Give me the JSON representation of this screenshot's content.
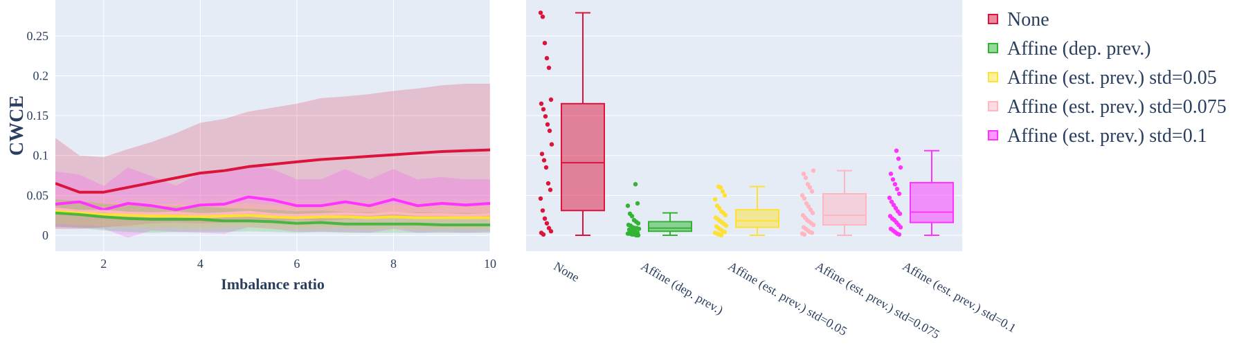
{
  "chart_data": [
    {
      "type": "line",
      "xlabel": "Imbalance ratio",
      "ylabel": "CWCE",
      "xlim": [
        1,
        10
      ],
      "ylim": [
        -0.02,
        0.295
      ],
      "xticks": [
        "2",
        "4",
        "6",
        "8",
        "10"
      ],
      "yticks": [
        "0",
        "0.05",
        "0.1",
        "0.15",
        "0.2",
        "0.25"
      ],
      "grid": true,
      "x": [
        1,
        1.5,
        2,
        2.5,
        3,
        3.5,
        4,
        4.5,
        5,
        5.5,
        6,
        6.5,
        7,
        7.5,
        8,
        8.5,
        9,
        9.5,
        10
      ],
      "series": [
        {
          "color": "#dc143c",
          "values": [
            0.065,
            0.054,
            0.054,
            0.06,
            0.066,
            0.072,
            0.078,
            0.081,
            0.086,
            0.089,
            0.092,
            0.095,
            0.097,
            0.099,
            0.101,
            0.103,
            0.105,
            0.106,
            0.107
          ],
          "upper": [
            0.122,
            0.1,
            0.098,
            0.108,
            0.117,
            0.128,
            0.141,
            0.146,
            0.155,
            0.16,
            0.165,
            0.172,
            0.174,
            0.177,
            0.181,
            0.184,
            0.188,
            0.19,
            0.19
          ],
          "lower": [
            0.008,
            0.008,
            0.01,
            0.012,
            0.015,
            0.016,
            0.015,
            0.016,
            0.017,
            0.018,
            0.019,
            0.018,
            0.02,
            0.021,
            0.021,
            0.022,
            0.022,
            0.022,
            0.022
          ]
        },
        {
          "color": "#ff33ff",
          "values": [
            0.039,
            0.042,
            0.032,
            0.04,
            0.037,
            0.032,
            0.038,
            0.039,
            0.048,
            0.044,
            0.037,
            0.037,
            0.042,
            0.037,
            0.045,
            0.037,
            0.04,
            0.038,
            0.04
          ],
          "upper": [
            0.08,
            0.076,
            0.062,
            0.085,
            0.074,
            0.062,
            0.078,
            0.078,
            0.088,
            0.083,
            0.07,
            0.07,
            0.083,
            0.07,
            0.083,
            0.07,
            0.073,
            0.07,
            0.07
          ],
          "lower": [
            0.01,
            0.01,
            0.008,
            -0.003,
            0.006,
            0.004,
            0.003,
            0.002,
            0.01,
            0.008,
            0.004,
            0.004,
            0.004,
            0.003,
            0.008,
            0.003,
            0.004,
            0.003,
            0.004
          ]
        },
        {
          "color": "#ffb6c1",
          "values": [
            0.033,
            0.03,
            0.03,
            0.028,
            0.027,
            0.028,
            0.026,
            0.027,
            0.029,
            0.026,
            0.025,
            0.026,
            0.027,
            0.026,
            0.028,
            0.026,
            0.026,
            0.025,
            0.026
          ],
          "upper": [
            0.052,
            0.05,
            0.05,
            0.048,
            0.047,
            0.047,
            0.046,
            0.047,
            0.049,
            0.046,
            0.045,
            0.046,
            0.047,
            0.046,
            0.048,
            0.046,
            0.046,
            0.045,
            0.046
          ],
          "lower": [
            0.014,
            0.012,
            0.012,
            0.01,
            0.009,
            0.01,
            0.009,
            0.01,
            0.011,
            0.009,
            0.008,
            0.009,
            0.01,
            0.009,
            0.01,
            0.009,
            0.009,
            0.008,
            0.009
          ]
        },
        {
          "color": "#ffe135",
          "values": [
            0.03,
            0.028,
            0.026,
            0.025,
            0.024,
            0.024,
            0.023,
            0.024,
            0.025,
            0.023,
            0.022,
            0.023,
            0.023,
            0.022,
            0.023,
            0.022,
            0.022,
            0.022,
            0.022
          ],
          "upper": [
            0.045,
            0.043,
            0.041,
            0.04,
            0.039,
            0.039,
            0.038,
            0.039,
            0.04,
            0.038,
            0.037,
            0.038,
            0.038,
            0.037,
            0.038,
            0.037,
            0.037,
            0.037,
            0.037
          ],
          "lower": [
            0.015,
            0.013,
            0.011,
            0.01,
            0.009,
            0.009,
            0.008,
            0.009,
            0.01,
            0.008,
            0.007,
            0.008,
            0.008,
            0.007,
            0.008,
            0.007,
            0.007,
            0.007,
            0.007
          ]
        },
        {
          "color": "#32b432",
          "values": [
            0.028,
            0.026,
            0.023,
            0.021,
            0.02,
            0.02,
            0.02,
            0.018,
            0.018,
            0.017,
            0.015,
            0.016,
            0.014,
            0.014,
            0.014,
            0.014,
            0.013,
            0.013,
            0.013
          ],
          "upper": [
            0.045,
            0.043,
            0.04,
            0.038,
            0.037,
            0.036,
            0.036,
            0.034,
            0.033,
            0.032,
            0.03,
            0.031,
            0.029,
            0.029,
            0.029,
            0.029,
            0.028,
            0.028,
            0.028
          ],
          "lower": [
            0.011,
            0.009,
            0.006,
            0.004,
            0.003,
            0.004,
            0.004,
            0.004,
            0.005,
            0.004,
            0.003,
            0.004,
            0.003,
            0.003,
            0.003,
            0.003,
            0.003,
            0.003,
            0.003
          ]
        }
      ]
    },
    {
      "type": "box",
      "ylim": [
        -0.02,
        0.295
      ],
      "grid": true,
      "categories": [
        "None",
        "Affine (dep. prev.)",
        "Affine (est. prev.) std=0.05",
        "Affine (est. prev.) std=0.075",
        "Affine (est. prev.) std=0.1"
      ],
      "boxes": [
        {
          "name": "None",
          "color": "#dc143c",
          "fill": "rgba(220,20,60,0.5)",
          "min": 0.0,
          "q1": 0.031,
          "median": 0.091,
          "q3": 0.165,
          "max": 0.279,
          "points": [
            0.279,
            0.274,
            0.241,
            0.222,
            0.21,
            0.17,
            0.165,
            0.158,
            0.149,
            0.139,
            0.131,
            0.114,
            0.102,
            0.094,
            0.085,
            0.065,
            0.057,
            0.046,
            0.031,
            0.021,
            0.015,
            0.009,
            0.005,
            0.003,
            0.001
          ]
        },
        {
          "name": "Affine (dep. prev.)",
          "color": "#32b432",
          "fill": "rgba(50,180,50,0.5)",
          "min": 0.0,
          "q1": 0.005,
          "median": 0.009,
          "q3": 0.017,
          "max": 0.028,
          "points": [
            0.064,
            0.04,
            0.037,
            0.027,
            0.024,
            0.019,
            0.017,
            0.015,
            0.013,
            0.012,
            0.01,
            0.009,
            0.009,
            0.008,
            0.007,
            0.006,
            0.005,
            0.004,
            0.003,
            0.002,
            0.002,
            0.001,
            0.001,
            0.0,
            0.0
          ]
        },
        {
          "name": "Affine (est. prev.) std=0.05",
          "color": "#ffe135",
          "fill": "rgba(255,225,53,0.5)",
          "min": 0.0,
          "q1": 0.01,
          "median": 0.018,
          "q3": 0.032,
          "max": 0.061,
          "points": [
            0.061,
            0.06,
            0.055,
            0.05,
            0.045,
            0.037,
            0.034,
            0.03,
            0.028,
            0.025,
            0.022,
            0.02,
            0.018,
            0.016,
            0.014,
            0.012,
            0.011,
            0.009,
            0.007,
            0.005,
            0.004,
            0.003,
            0.002,
            0.001,
            0.0
          ]
        },
        {
          "name": "Affine (est. prev.) std=0.075",
          "color": "#ffb6c1",
          "fill": "rgba(255,182,193,0.5)",
          "min": 0.0,
          "q1": 0.013,
          "median": 0.025,
          "q3": 0.052,
          "max": 0.081,
          "points": [
            0.081,
            0.077,
            0.072,
            0.064,
            0.06,
            0.055,
            0.05,
            0.046,
            0.04,
            0.036,
            0.032,
            0.028,
            0.025,
            0.022,
            0.019,
            0.017,
            0.015,
            0.013,
            0.01,
            0.008,
            0.006,
            0.004,
            0.003,
            0.002,
            0.001
          ]
        },
        {
          "name": "Affine (est. prev.) std=0.1",
          "color": "#ff33ff",
          "fill": "rgba(255,51,255,0.5)",
          "min": 0.0,
          "q1": 0.016,
          "median": 0.029,
          "q3": 0.066,
          "max": 0.106,
          "points": [
            0.106,
            0.096,
            0.085,
            0.077,
            0.07,
            0.064,
            0.058,
            0.052,
            0.047,
            0.042,
            0.038,
            0.034,
            0.03,
            0.027,
            0.024,
            0.021,
            0.019,
            0.016,
            0.013,
            0.01,
            0.008,
            0.006,
            0.004,
            0.002,
            0.001
          ]
        }
      ]
    }
  ],
  "legend": {
    "placement": "right",
    "entries": [
      {
        "label": "None",
        "color": "#dc143c",
        "fill": "rgba(220,20,60,0.5)"
      },
      {
        "label": "Affine (dep. prev.)",
        "color": "#32b432",
        "fill": "rgba(50,180,50,0.5)"
      },
      {
        "label": "Affine (est. prev.) std=0.05",
        "color": "#ffe135",
        "fill": "rgba(255,225,53,0.5)"
      },
      {
        "label": "Affine (est. prev.) std=0.075",
        "color": "#ffb6c1",
        "fill": "rgba(255,182,193,0.5)"
      },
      {
        "label": "Affine (est. prev.) std=0.1",
        "color": "#ff33ff",
        "fill": "rgba(255,51,255,0.5)"
      }
    ]
  },
  "colors": {
    "plot_bg": "#e5ecf6",
    "grid": "#ffffff",
    "text": "#2a3f5f"
  }
}
